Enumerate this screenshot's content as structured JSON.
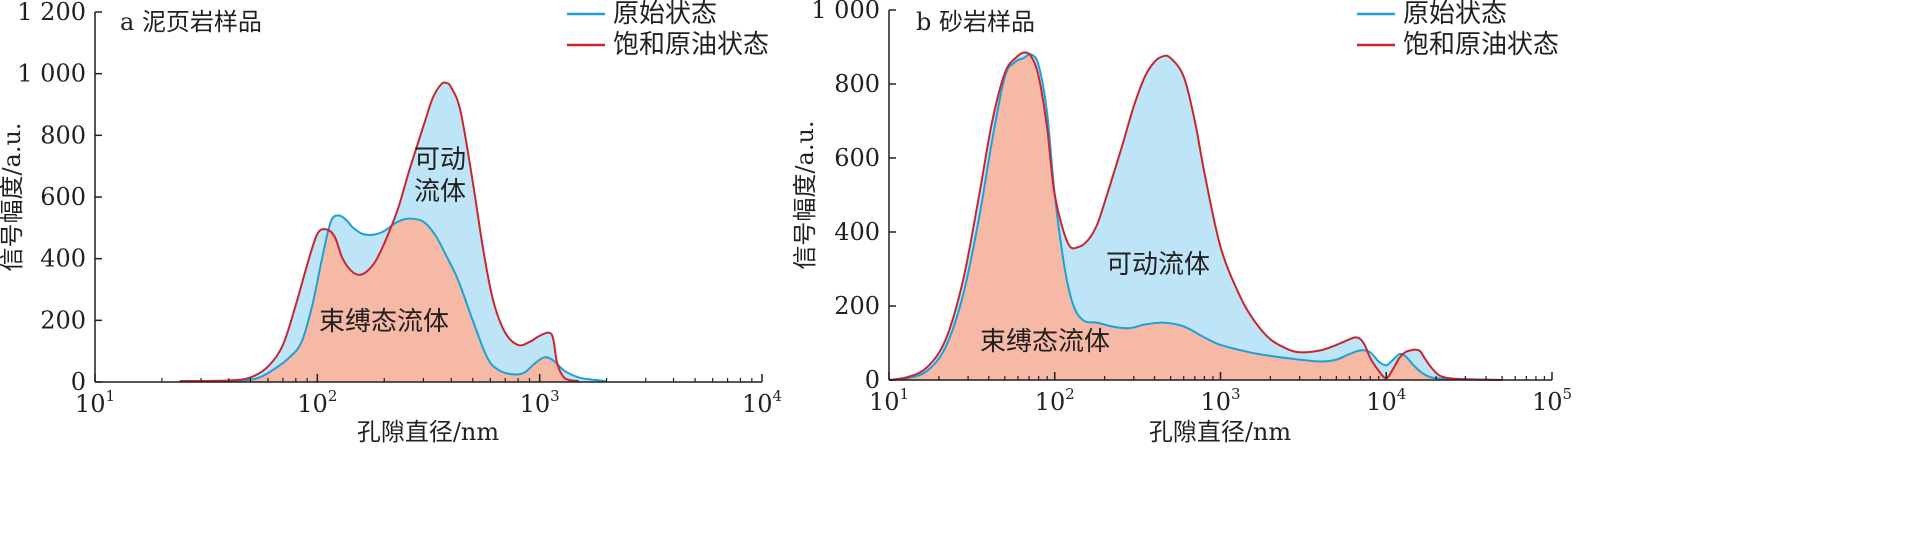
{
  "colors": {
    "original_line": "#1ea0d7",
    "saturated_line": "#c8262f",
    "mobile_fill": "#bde5f7",
    "bound_fill": "#f6b9a5"
  },
  "chart_data": [
    {
      "type": "area",
      "panel_label": "a 泥页岩样品",
      "xlabel": "孔隙直径/nm",
      "ylabel": "信号幅度/a.u.",
      "x_scale": "log",
      "xlim": [
        10,
        10000
      ],
      "ylim": [
        0,
        1200
      ],
      "x_ticks": [
        {
          "base": "10",
          "exp": "1"
        },
        {
          "base": "10",
          "exp": "2"
        },
        {
          "base": "10",
          "exp": "3"
        },
        {
          "base": "10",
          "exp": "4"
        }
      ],
      "y_ticks": [
        "0",
        "200",
        "400",
        "600",
        "800",
        "1 000",
        "1 200"
      ],
      "legend": [
        "原始状态",
        "饱和原油状态"
      ],
      "annotations": {
        "mobile": [
          "可动",
          "流体"
        ],
        "bound": "束缚态流体"
      },
      "series": [
        {
          "name": "原始状态",
          "x": [
            24,
            45,
            55,
            65,
            75,
            85,
            95,
            105,
            115,
            125,
            135,
            145,
            160,
            180,
            200,
            230,
            260,
            300,
            340,
            380,
            430,
            500,
            580,
            650,
            750,
            850,
            950,
            1050,
            1150,
            1300,
            1500,
            1700,
            2000
          ],
          "y": [
            3,
            5,
            15,
            45,
            80,
            130,
            250,
            400,
            520,
            540,
            525,
            500,
            480,
            478,
            490,
            520,
            530,
            520,
            475,
            410,
            330,
            200,
            80,
            40,
            25,
            30,
            60,
            80,
            70,
            35,
            15,
            8,
            3
          ]
        },
        {
          "name": "饱和原油状态",
          "x": [
            24,
            40,
            50,
            60,
            70,
            80,
            90,
            100,
            110,
            120,
            130,
            145,
            160,
            180,
            200,
            230,
            260,
            300,
            330,
            360,
            380,
            400,
            440,
            500,
            560,
            620,
            700,
            800,
            900,
            1000,
            1100,
            1150,
            1200,
            1300,
            1500
          ],
          "y": [
            3,
            5,
            15,
            50,
            120,
            250,
            380,
            480,
            495,
            470,
            400,
            355,
            350,
            385,
            450,
            560,
            690,
            830,
            920,
            965,
            970,
            955,
            880,
            650,
            420,
            260,
            160,
            120,
            130,
            150,
            160,
            140,
            60,
            12,
            3
          ]
        }
      ]
    },
    {
      "type": "area",
      "panel_label": "b 砂岩样品",
      "xlabel": "孔隙直径/nm",
      "ylabel": "信号幅度/a.u.",
      "x_scale": "log",
      "xlim": [
        10,
        100000
      ],
      "ylim": [
        0,
        1000
      ],
      "x_ticks": [
        {
          "base": "10",
          "exp": "1"
        },
        {
          "base": "10",
          "exp": "2"
        },
        {
          "base": "10",
          "exp": "3"
        },
        {
          "base": "10",
          "exp": "4"
        },
        {
          "base": "10",
          "exp": "5"
        }
      ],
      "y_ticks": [
        "0",
        "200",
        "400",
        "600",
        "800",
        "1 000"
      ],
      "legend": [
        "原始状态",
        "饱和原油状态"
      ],
      "annotations": {
        "mobile": "可动流体",
        "bound": "束缚态流体"
      },
      "series": [
        {
          "name": "原始状态",
          "x": [
            10,
            13,
            17,
            22,
            28,
            35,
            42,
            50,
            58,
            65,
            72,
            80,
            90,
            100,
            115,
            130,
            150,
            180,
            220,
            280,
            350,
            450,
            600,
            800,
            1000,
            1500,
            2000,
            3000,
            4000,
            5000,
            6000,
            7000,
            8000,
            9000,
            10000,
            11000,
            12000,
            13000,
            15000,
            17000,
            20000,
            30000,
            50000
          ],
          "y": [
            0,
            5,
            25,
            90,
            230,
            440,
            650,
            820,
            860,
            870,
            880,
            850,
            720,
            500,
            300,
            200,
            160,
            155,
            145,
            140,
            150,
            155,
            145,
            115,
            95,
            75,
            65,
            55,
            50,
            55,
            70,
            80,
            75,
            50,
            40,
            55,
            70,
            65,
            35,
            15,
            5,
            2,
            0
          ]
        },
        {
          "name": "饱和原油状态",
          "x": [
            10,
            13,
            17,
            22,
            28,
            35,
            42,
            50,
            58,
            65,
            72,
            80,
            90,
            100,
            120,
            140,
            160,
            180,
            200,
            250,
            300,
            350,
            400,
            450,
            500,
            600,
            700,
            800,
            1000,
            1300,
            1600,
            2000,
            2500,
            3000,
            4000,
            5000,
            6000,
            6500,
            7000,
            7500,
            8000,
            9000,
            10000,
            11000,
            12000,
            13000,
            14000,
            15000,
            16000,
            17000,
            19000,
            22000,
            30000,
            50000
          ],
          "y": [
            0,
            8,
            35,
            110,
            270,
            500,
            700,
            830,
            870,
            885,
            875,
            820,
            680,
            500,
            370,
            360,
            380,
            420,
            480,
            620,
            740,
            820,
            860,
            875,
            870,
            820,
            700,
            560,
            360,
            230,
            160,
            110,
            85,
            75,
            80,
            95,
            110,
            115,
            110,
            90,
            60,
            25,
            5,
            30,
            60,
            75,
            80,
            82,
            78,
            60,
            30,
            8,
            2,
            0
          ]
        }
      ]
    }
  ]
}
